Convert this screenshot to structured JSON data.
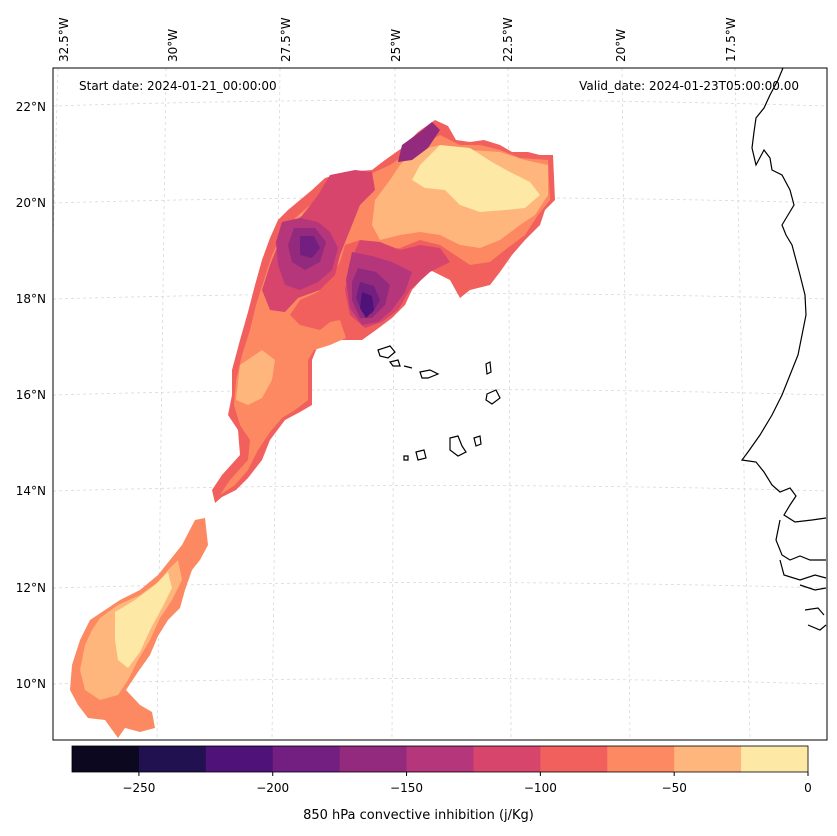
{
  "map": {
    "start_date_text": "Start date: 2024-01-21_00:00:00",
    "valid_date_text": "Valid_date: 2024-01-23T05:00:00.00",
    "longitude_labels": [
      "32.5°W",
      "30°W",
      "27.5°W",
      "25°W",
      "22.5°W",
      "20°W",
      "17.5°W"
    ],
    "latitude_labels": [
      "22°N",
      "20°N",
      "18°N",
      "16°N",
      "14°N",
      "12°N",
      "10°N"
    ],
    "field": "850 hPa convective inhibition",
    "region_note": "Cape Verde islands and West African coast"
  },
  "colorbar": {
    "label": "850 hPa convective inhibition (j/Kg)",
    "range": [
      -275,
      0
    ],
    "tick_values": [
      -250,
      -200,
      -150,
      -100,
      -50,
      0
    ],
    "tick_labels": [
      "−250",
      "−200",
      "−150",
      "−100",
      "−50",
      "0"
    ],
    "levels": [
      -275,
      -250,
      -225,
      -200,
      -175,
      -150,
      -125,
      -100,
      -75,
      -50,
      -25,
      0
    ],
    "colors": [
      "#0b0820",
      "#221150",
      "#4e1278",
      "#721f81",
      "#932a7e",
      "#b5367a",
      "#d8456c",
      "#f1605d",
      "#fc8961",
      "#feb67c",
      "#fde8a6"
    ]
  }
}
